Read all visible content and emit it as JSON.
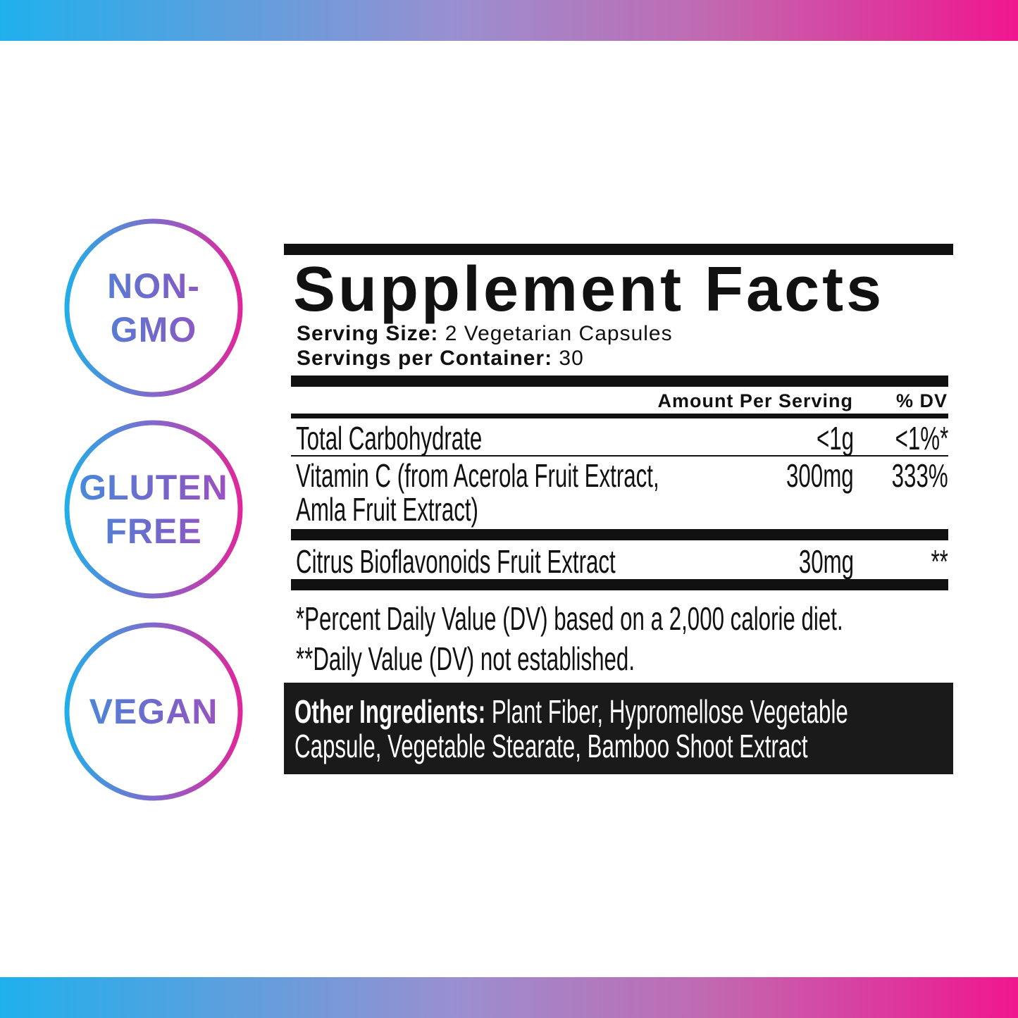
{
  "colors": {
    "gradient_start": "#1fb0ec",
    "gradient_mid": "#9a8fd0",
    "gradient_end": "#f0168e",
    "label_black": "#111111"
  },
  "badges": [
    {
      "line1": "NON-",
      "line2": "GMO"
    },
    {
      "line1": "GLUTEN",
      "line2": "FREE"
    },
    {
      "line1": "VEGAN",
      "line2": ""
    }
  ],
  "facts": {
    "title": "Supplement Facts",
    "serving_size_label": "Serving Size:",
    "serving_size_value": " 2 Vegetarian Capsules",
    "servings_label": "Servings per Container:",
    "servings_value": " 30",
    "header_amount": "Amount Per Serving",
    "header_dv": "% DV",
    "rows": [
      {
        "name": "Total Carbohydrate",
        "amount": "<1g",
        "dv": "<1%*"
      },
      {
        "name": "Vitamin C (from Acerola Fruit Extract,",
        "name2": "Amla Fruit Extract)",
        "amount": "300mg",
        "dv": "333%"
      },
      {
        "name": "Citrus Bioflavonoids Fruit Extract",
        "amount": "30mg",
        "dv": "**"
      }
    ],
    "footnote1": "*Percent Daily Value (DV) based on a 2,000 calorie diet.",
    "footnote2": "**Daily Value (DV) not established.",
    "other_label": "Other Ingredients:",
    "other_line1": " Plant Fiber, Hypromellose Vegetable",
    "other_line2": "Capsule, Vegetable Stearate, Bamboo Shoot Extract"
  }
}
